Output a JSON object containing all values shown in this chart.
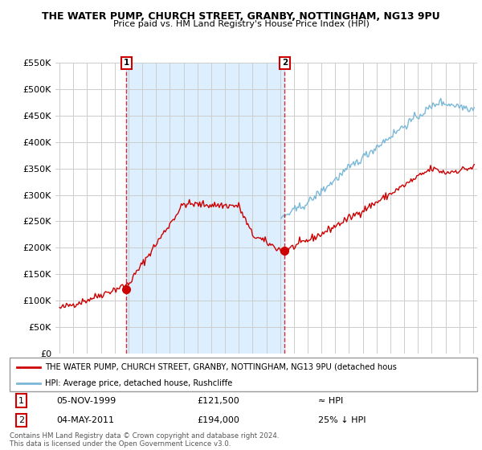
{
  "title": "THE WATER PUMP, CHURCH STREET, GRANBY, NOTTINGHAM, NG13 9PU",
  "subtitle": "Price paid vs. HM Land Registry's House Price Index (HPI)",
  "property_label": "THE WATER PUMP, CHURCH STREET, GRANBY, NOTTINGHAM, NG13 9PU (detached hous",
  "hpi_label": "HPI: Average price, detached house, Rushcliffe",
  "footnote": "Contains HM Land Registry data © Crown copyright and database right 2024.\nThis data is licensed under the Open Government Licence v3.0.",
  "annotation1": {
    "num": "1",
    "date": "05-NOV-1999",
    "price": "£121,500",
    "vs_hpi": "≈ HPI"
  },
  "annotation2": {
    "num": "2",
    "date": "04-MAY-2011",
    "price": "£194,000",
    "vs_hpi": "25% ↓ HPI"
  },
  "sale1_year": 1999.85,
  "sale1_price": 121500,
  "sale2_year": 2011.34,
  "sale2_price": 194000,
  "property_color": "#cc0000",
  "hpi_color": "#7ab8d9",
  "shade_color": "#ddeeff",
  "ylim": [
    0,
    550000
  ],
  "yticks": [
    0,
    50000,
    100000,
    150000,
    200000,
    250000,
    300000,
    350000,
    400000,
    450000,
    500000,
    550000
  ],
  "xlim_start": 1994.7,
  "xlim_end": 2025.3,
  "background": "#ffffff",
  "grid_color": "#cccccc"
}
